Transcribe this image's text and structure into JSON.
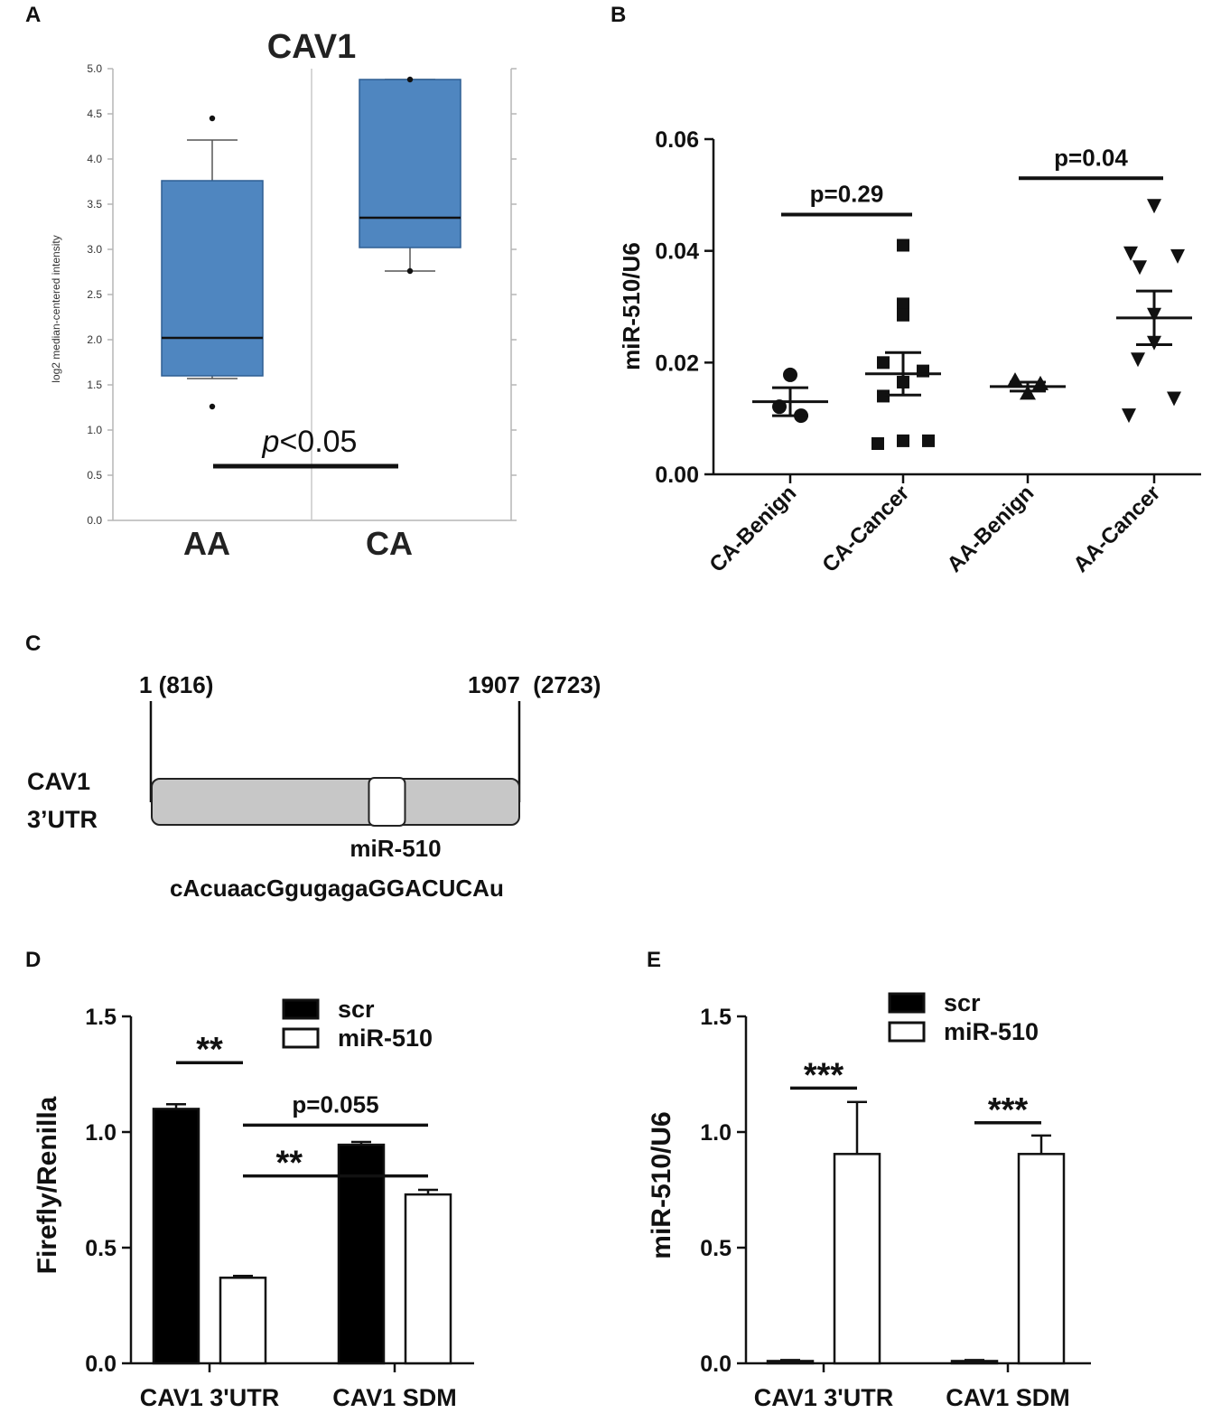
{
  "panels": {
    "A": {
      "letter": "A"
    },
    "B": {
      "letter": "B"
    },
    "C": {
      "letter": "C"
    },
    "D": {
      "letter": "D"
    },
    "E": {
      "letter": "E"
    }
  },
  "colors": {
    "box_fill": "#4f86c0",
    "box_stroke": "#2e5f93",
    "ink": "#111111",
    "grid": "#b5b5b5"
  },
  "schematic": {
    "start_label": "1 (816)",
    "end_label": "1907  (2723)",
    "gene_label_line1": "CAV1",
    "gene_label_line2": "3’UTR",
    "site_label": "miR-510",
    "sequence": "cAcuaacGgugagaGGACUCAu",
    "site_fraction": 0.64
  },
  "chart_data": [
    {
      "panel": "A",
      "type": "box",
      "title": "CAV1",
      "ylabel": "log2 median-centered intensity",
      "ylim": [
        0,
        5
      ],
      "yticks": [
        "0.0",
        "0.5",
        "1.0",
        "1.5",
        "2.0",
        "2.5",
        "3.0",
        "3.5",
        "4.0",
        "4.5",
        "5.0"
      ],
      "categories": [
        "AA",
        "CA"
      ],
      "boxes": [
        {
          "name": "AA",
          "min": 1.57,
          "q1": 1.6,
          "median": 2.02,
          "q3": 3.76,
          "max": 4.21,
          "outliers": [
            1.26,
            4.45
          ]
        },
        {
          "name": "CA",
          "min": 2.76,
          "q1": 3.02,
          "median": 3.35,
          "q3": 4.88,
          "max": 4.88,
          "outliers": [
            2.76,
            4.88
          ]
        }
      ],
      "annotation": {
        "italic": "p",
        "rest": "<0.05",
        "y": 0.6
      }
    },
    {
      "panel": "B",
      "type": "scatter",
      "ylabel": "miR-510/U6",
      "ylim": [
        0,
        0.06
      ],
      "yticks": [
        "0.00",
        "0.02",
        "0.04",
        "0.06"
      ],
      "categories": [
        "CA-Benign",
        "CA-Cancer",
        "AA-Benign",
        "AA-Cancer"
      ],
      "series": [
        {
          "name": "CA-Benign",
          "marker": "circle",
          "values": [
            0.0178,
            0.0121,
            0.0105
          ],
          "mean": 0.013,
          "sem": 0.0025
        },
        {
          "name": "CA-Cancer",
          "marker": "square",
          "values": [
            0.041,
            0.0305,
            0.0285,
            0.02,
            0.0185,
            0.0165,
            0.014,
            0.0055,
            0.006,
            0.006
          ],
          "mean": 0.018,
          "sem": 0.0038
        },
        {
          "name": "AA-Benign",
          "marker": "triangle-up",
          "values": [
            0.0168,
            0.0162,
            0.0145
          ],
          "mean": 0.0157,
          "sem": 0.0008
        },
        {
          "name": "AA-Cancer",
          "marker": "triangle-down",
          "values": [
            0.048,
            0.0395,
            0.039,
            0.037,
            0.0285,
            0.0235,
            0.0205,
            0.0135,
            0.0105
          ],
          "mean": 0.028,
          "sem": 0.0048
        }
      ],
      "comparisons": [
        {
          "from": 0,
          "to": 1,
          "label": "p=0.29",
          "y": 0.0465
        },
        {
          "from": 2,
          "to": 3,
          "label": "p=0.04",
          "y": 0.053
        }
      ]
    },
    {
      "panel": "D",
      "type": "bar",
      "ylabel": "Firefly/Renilla",
      "ylim": [
        0,
        1.5
      ],
      "yticks": [
        "0.0",
        "0.5",
        "1.0",
        "1.5"
      ],
      "categories": [
        "CAV1 3'UTR",
        "CAV1 SDM"
      ],
      "series": [
        {
          "name": "scr",
          "fill": "#000000",
          "values": [
            1.1,
            0.945
          ],
          "errors": [
            0.02,
            0.012
          ]
        },
        {
          "name": "miR-510",
          "fill": "#ffffff",
          "values": [
            0.37,
            0.73
          ],
          "errors": [
            0.008,
            0.02
          ]
        }
      ],
      "comparisons": [
        {
          "from": [
            0,
            0
          ],
          "to": [
            0,
            1
          ],
          "label": "**",
          "y": 1.3
        },
        {
          "from": [
            0,
            1
          ],
          "to": [
            1,
            1
          ],
          "label": "p=0.055",
          "y": 1.03
        },
        {
          "from": [
            0,
            1
          ],
          "to": [
            1,
            1
          ],
          "label": "**",
          "y": 0.81,
          "label_dx": 0.25
        }
      ]
    },
    {
      "panel": "E",
      "type": "bar",
      "ylabel": "miR-510/U6",
      "ylim": [
        0,
        1.5
      ],
      "yticks": [
        "0.0",
        "0.5",
        "1.0",
        "1.5"
      ],
      "categories": [
        "CAV1 3'UTR",
        "CAV1 SDM"
      ],
      "series": [
        {
          "name": "scr",
          "fill": "#000000",
          "values": [
            0.01,
            0.01
          ],
          "errors": [
            0.004,
            0.004
          ]
        },
        {
          "name": "miR-510",
          "fill": "#ffffff",
          "values": [
            0.905,
            0.905
          ],
          "errors": [
            0.225,
            0.08
          ]
        }
      ],
      "comparisons": [
        {
          "from": [
            0,
            0
          ],
          "to": [
            0,
            1
          ],
          "label": "***",
          "y": 1.19
        },
        {
          "from": [
            1,
            0
          ],
          "to": [
            1,
            1
          ],
          "label": "***",
          "y": 1.04
        }
      ]
    }
  ]
}
